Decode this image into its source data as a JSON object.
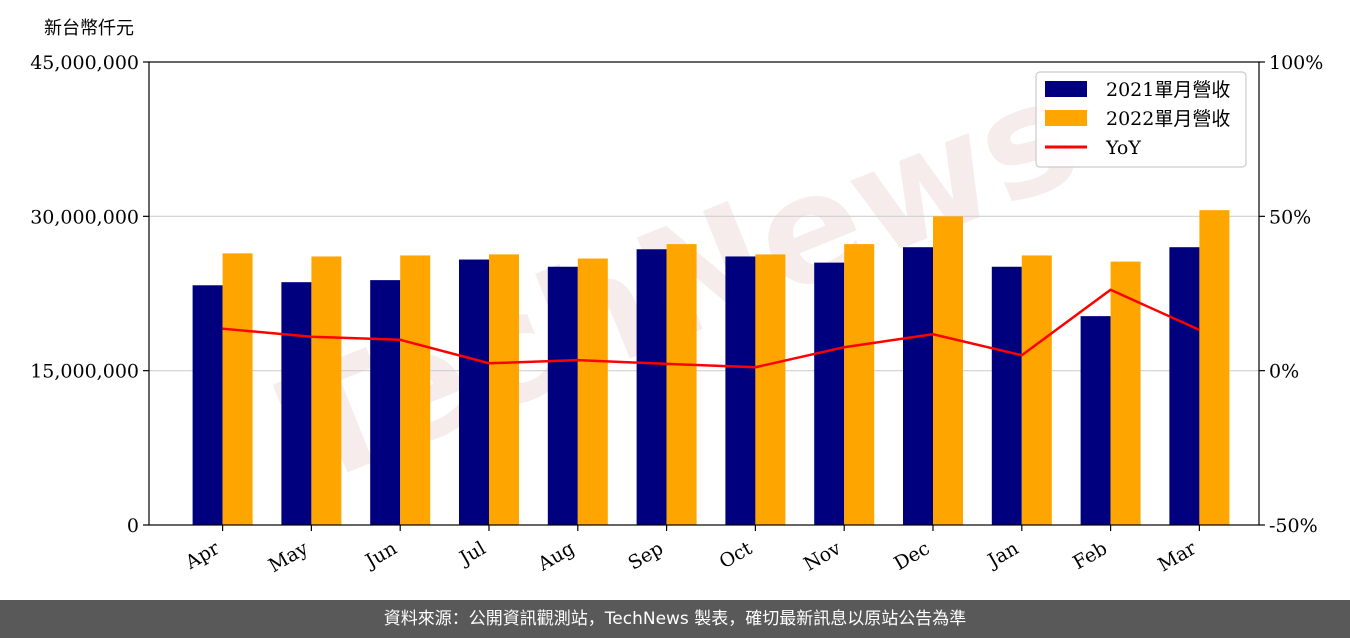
{
  "unit_label": "新台幣仟元",
  "watermark": "TechNews",
  "footer": "資料來源：公開資訊觀測站，TechNews 製表，確切最新訊息以原站公告為準",
  "chart_data": {
    "type": "bar",
    "categories": [
      "Apr",
      "May",
      "Jun",
      "Jul",
      "Aug",
      "Sep",
      "Oct",
      "Nov",
      "Dec",
      "Jan",
      "Feb",
      "Mar"
    ],
    "series": [
      {
        "name": "2021單月營收",
        "type": "bar",
        "axis": "left",
        "color": "#00007f",
        "values": [
          23300000,
          23600000,
          23800000,
          25800000,
          25100000,
          26800000,
          26100000,
          25500000,
          27000000,
          25100000,
          20300000,
          27000000
        ]
      },
      {
        "name": "2022單月營收",
        "type": "bar",
        "axis": "left",
        "color": "#ffa500",
        "values": [
          26400000,
          26100000,
          26200000,
          26300000,
          25900000,
          27300000,
          26300000,
          27300000,
          30000000,
          26200000,
          25600000,
          30600000
        ]
      },
      {
        "name": "YoY",
        "type": "line",
        "axis": "right",
        "color": "#ff0000",
        "values": [
          13.6,
          11.0,
          10.0,
          2.4,
          3.4,
          2.2,
          1.1,
          7.6,
          11.8,
          5.0,
          26.2,
          13.2
        ]
      }
    ],
    "y_left": {
      "ylim": [
        0,
        45000000
      ],
      "ticks": [
        0,
        15000000,
        30000000,
        45000000
      ],
      "tick_labels": [
        "0",
        "15,000,000",
        "30,000,000",
        "45,000,000"
      ]
    },
    "y_right": {
      "ylim": [
        -50,
        100
      ],
      "ticks": [
        -50,
        0,
        50,
        100
      ],
      "tick_labels": [
        "-50%",
        "0%",
        "50%",
        "100%"
      ]
    },
    "grid": "horizontal",
    "legend_position": "top-right"
  }
}
